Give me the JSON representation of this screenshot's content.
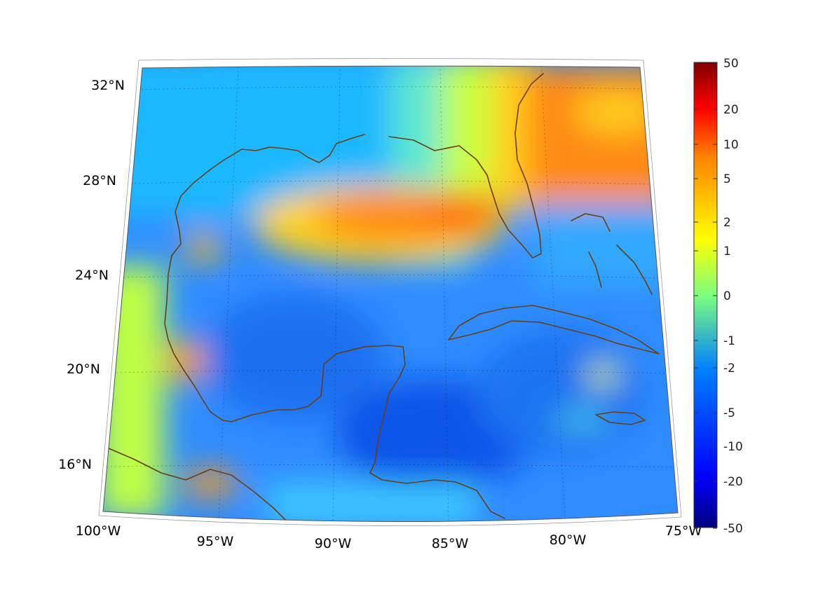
{
  "map": {
    "projection": "conic",
    "lon_range": [
      -100,
      -75
    ],
    "lat_range": [
      14,
      33
    ],
    "lon_tick_labels": [
      "100°W",
      "95°W",
      "90°W",
      "85°W",
      "80°W",
      "75°W"
    ],
    "lat_tick_labels": [
      "32°N",
      "28°N",
      "24°N",
      "20°N",
      "16°N"
    ],
    "coastline_color": "#6b3e10",
    "grid": true
  },
  "colorbar": {
    "colormap": "jet",
    "scale": "symmetric-log",
    "tick_labels": [
      "50",
      "20",
      "10",
      "5",
      "2",
      "1",
      "0",
      "-1",
      "-2",
      "-5",
      "-10",
      "-20",
      "-50"
    ]
  }
}
